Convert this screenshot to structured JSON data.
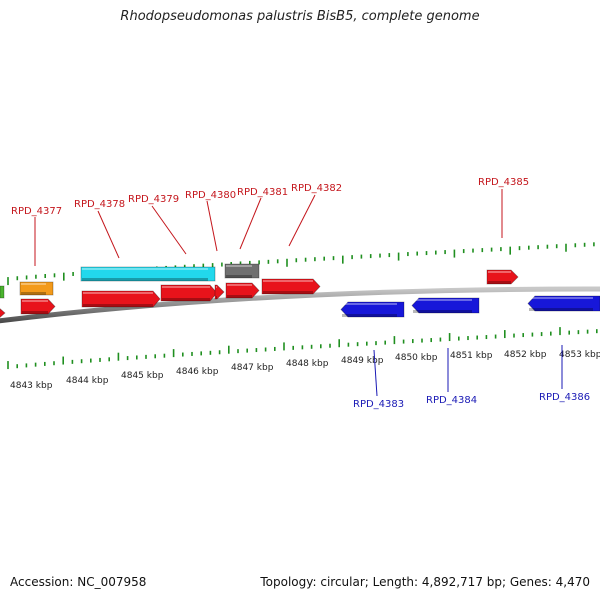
{
  "title": "Rhodopseudomonas palustris BisB5, complete genome",
  "footer": {
    "accession": "Accession: NC_007958",
    "summary": "Topology: circular; Length: 4,892,717 bp; Genes: 4,470"
  },
  "colors": {
    "plus_strand": "#e8131b",
    "minus_strand": "#1717d9",
    "cyan_gene": "#22d8ec",
    "gray_gene": "#707070",
    "orange_gene": "#f39a1a",
    "green_gene": "#4ab32e",
    "tick_green": "#1f8f1f",
    "plus_label": "#c4161c",
    "minus_label": "#1a1ab5",
    "backbone": "#8a8a8a"
  },
  "kbp_labels": [
    "4843 kbp",
    "4844 kbp",
    "4845 kbp",
    "4846 kbp",
    "4847 kbp",
    "4848 kbp",
    "4849 kbp",
    "4850 kbp",
    "4851 kbp",
    "4852 kbp",
    "4853 kbp"
  ],
  "gene_labels": {
    "plus": [
      "RPD_4377",
      "RPD_4378",
      "RPD_4379",
      "RPD_4380",
      "RPD_4381",
      "RPD_4382",
      "RPD_4385"
    ],
    "minus": [
      "RPD_4383",
      "RPD_4384",
      "RPD_4386"
    ]
  }
}
